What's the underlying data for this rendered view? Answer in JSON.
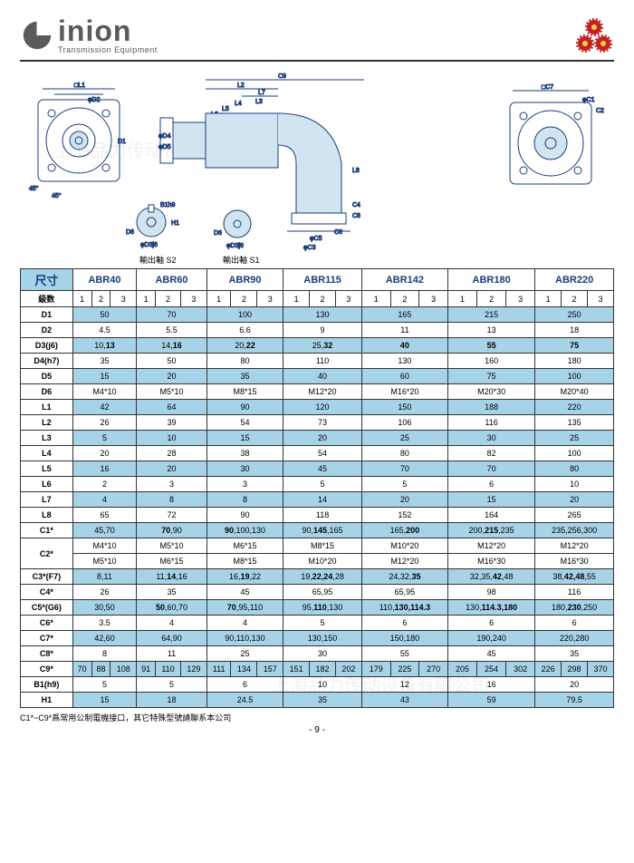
{
  "brand": {
    "name": "inion",
    "subtitle": "Transmission Equipment"
  },
  "diagramLabels": {
    "shaft_s2": "輸出軸 S2",
    "shaft_s1": "輸出軸 S1"
  },
  "table": {
    "dimHeader": "尺寸",
    "models": [
      "ABR40",
      "ABR60",
      "ABR90",
      "ABR115",
      "ABR142",
      "ABR180",
      "ABR220"
    ],
    "stageHeader": "級数",
    "stages": [
      "1",
      "2",
      "3"
    ],
    "rows": [
      {
        "label": "D1",
        "alt": true,
        "vals": [
          "50",
          "70",
          "100",
          "130",
          "165",
          "215",
          "250"
        ]
      },
      {
        "label": "D2",
        "alt": false,
        "vals": [
          "4.5",
          "5.5",
          "6.6",
          "9",
          "11",
          "13",
          "18"
        ]
      },
      {
        "label": "D3(j6)",
        "alt": true,
        "vals": [
          "10,<b>13</b>",
          "14,<b>16</b>",
          "20,<b>22</b>",
          "25,<b>32</b>",
          "<b>40</b>",
          "<b>55</b>",
          "<b>75</b>"
        ]
      },
      {
        "label": "D4(h7)",
        "alt": false,
        "vals": [
          "35",
          "50",
          "80",
          "110",
          "130",
          "160",
          "180"
        ]
      },
      {
        "label": "D5",
        "alt": true,
        "vals": [
          "15",
          "20",
          "35",
          "40",
          "60",
          "75",
          "100"
        ]
      },
      {
        "label": "D6",
        "alt": false,
        "vals": [
          "M4*10",
          "M5*10",
          "M8*15",
          "M12*20",
          "M16*20",
          "M20*30",
          "M20*40"
        ]
      },
      {
        "label": "L1",
        "alt": true,
        "vals": [
          "42",
          "64",
          "90",
          "120",
          "150",
          "188",
          "220"
        ]
      },
      {
        "label": "L2",
        "alt": false,
        "vals": [
          "26",
          "39",
          "54",
          "73",
          "106",
          "116",
          "135"
        ]
      },
      {
        "label": "L3",
        "alt": true,
        "vals": [
          "5",
          "10",
          "15",
          "20",
          "25",
          "30",
          "25"
        ]
      },
      {
        "label": "L4",
        "alt": false,
        "vals": [
          "20",
          "28",
          "38",
          "54",
          "80",
          "82",
          "100"
        ]
      },
      {
        "label": "L5",
        "alt": true,
        "vals": [
          "16",
          "20",
          "30",
          "45",
          "70",
          "70",
          "80"
        ]
      },
      {
        "label": "L6",
        "alt": false,
        "vals": [
          "2",
          "3",
          "3",
          "5",
          "5",
          "6",
          "10"
        ]
      },
      {
        "label": "L7",
        "alt": true,
        "vals": [
          "4",
          "8",
          "8",
          "14",
          "20",
          "15",
          "20"
        ]
      },
      {
        "label": "L8",
        "alt": false,
        "vals": [
          "65",
          "72",
          "90",
          "118",
          "152",
          "164",
          "265"
        ]
      },
      {
        "label": "C1*",
        "alt": true,
        "vals": [
          "45,70",
          "<b>70</b>,90",
          "<b>90</b>,100,130",
          "90,<b>145</b>,165",
          "165,<b>200</b>",
          "200,<b>215</b>,235",
          "235,256,300"
        ]
      },
      {
        "label": "C2*",
        "alt": false,
        "double": true,
        "vals": [
          [
            "M4*10",
            "M5*10",
            "M6*15",
            "M8*15",
            "M10*20",
            "M12*20",
            "M12*20"
          ],
          [
            "M5*10",
            "M6*15",
            "M8*15",
            "M10*20",
            "M12*20",
            "M16*30",
            "M16*30"
          ]
        ]
      },
      {
        "label": "C3*(F7)",
        "alt": true,
        "vals": [
          "8,11",
          "11,<b>14</b>,16",
          "16,<b>19</b>,22",
          "19,<b>22,24</b>,28",
          "24,32,<b>35</b>",
          "32,35,<b>42</b>,48",
          "38,<b>42,48</b>,55"
        ]
      },
      {
        "label": "C4*",
        "alt": false,
        "vals": [
          "26",
          "35",
          "45",
          "65,95",
          "65,95",
          "98",
          "116"
        ]
      },
      {
        "label": "C5*(G6)",
        "alt": true,
        "vals": [
          "30,50",
          "<b>50</b>,60,70",
          "<b>70</b>,95,110",
          "95,<b>110</b>,130",
          "110,<b>130,114.3</b>",
          "130,<b>114.3,180</b>",
          "180,<b>230</b>,250"
        ]
      },
      {
        "label": "C6*",
        "alt": false,
        "vals": [
          "3.5",
          "4",
          "4",
          "5",
          "6",
          "6",
          "6"
        ]
      },
      {
        "label": "C7*",
        "alt": true,
        "vals": [
          "42,60",
          "64,90",
          "90,110,130",
          "130,150",
          "150,180",
          "190,240",
          "220,280"
        ]
      },
      {
        "label": "C8*",
        "alt": false,
        "vals": [
          "8",
          "11",
          "25",
          "30",
          "55",
          "45",
          "35"
        ]
      },
      {
        "label": "C9*",
        "alt": true,
        "split": true,
        "vals": [
          [
            "70",
            "88",
            "108"
          ],
          [
            "91",
            "110",
            "129"
          ],
          [
            "111",
            "134",
            "157"
          ],
          [
            "151",
            "182",
            "202"
          ],
          [
            "179",
            "225",
            "270"
          ],
          [
            "205",
            "254",
            "302"
          ],
          [
            "226",
            "298",
            "370"
          ]
        ]
      },
      {
        "label": "B1(h9)",
        "alt": false,
        "vals": [
          "5",
          "5",
          "6",
          "10",
          "12",
          "16",
          "20"
        ]
      },
      {
        "label": "H1",
        "alt": true,
        "vals": [
          "15",
          "18",
          "24.5",
          "35",
          "43",
          "59",
          "79.5"
        ]
      }
    ]
  },
  "footerNote": "C1*~C9*爲常用公制電機接口，其它特殊型號請聯系本公司",
  "pageNum": "- 9 -",
  "colors": {
    "altBg": "#a7d3e8",
    "border": "#333333",
    "headerText": "#1a3d7a"
  }
}
